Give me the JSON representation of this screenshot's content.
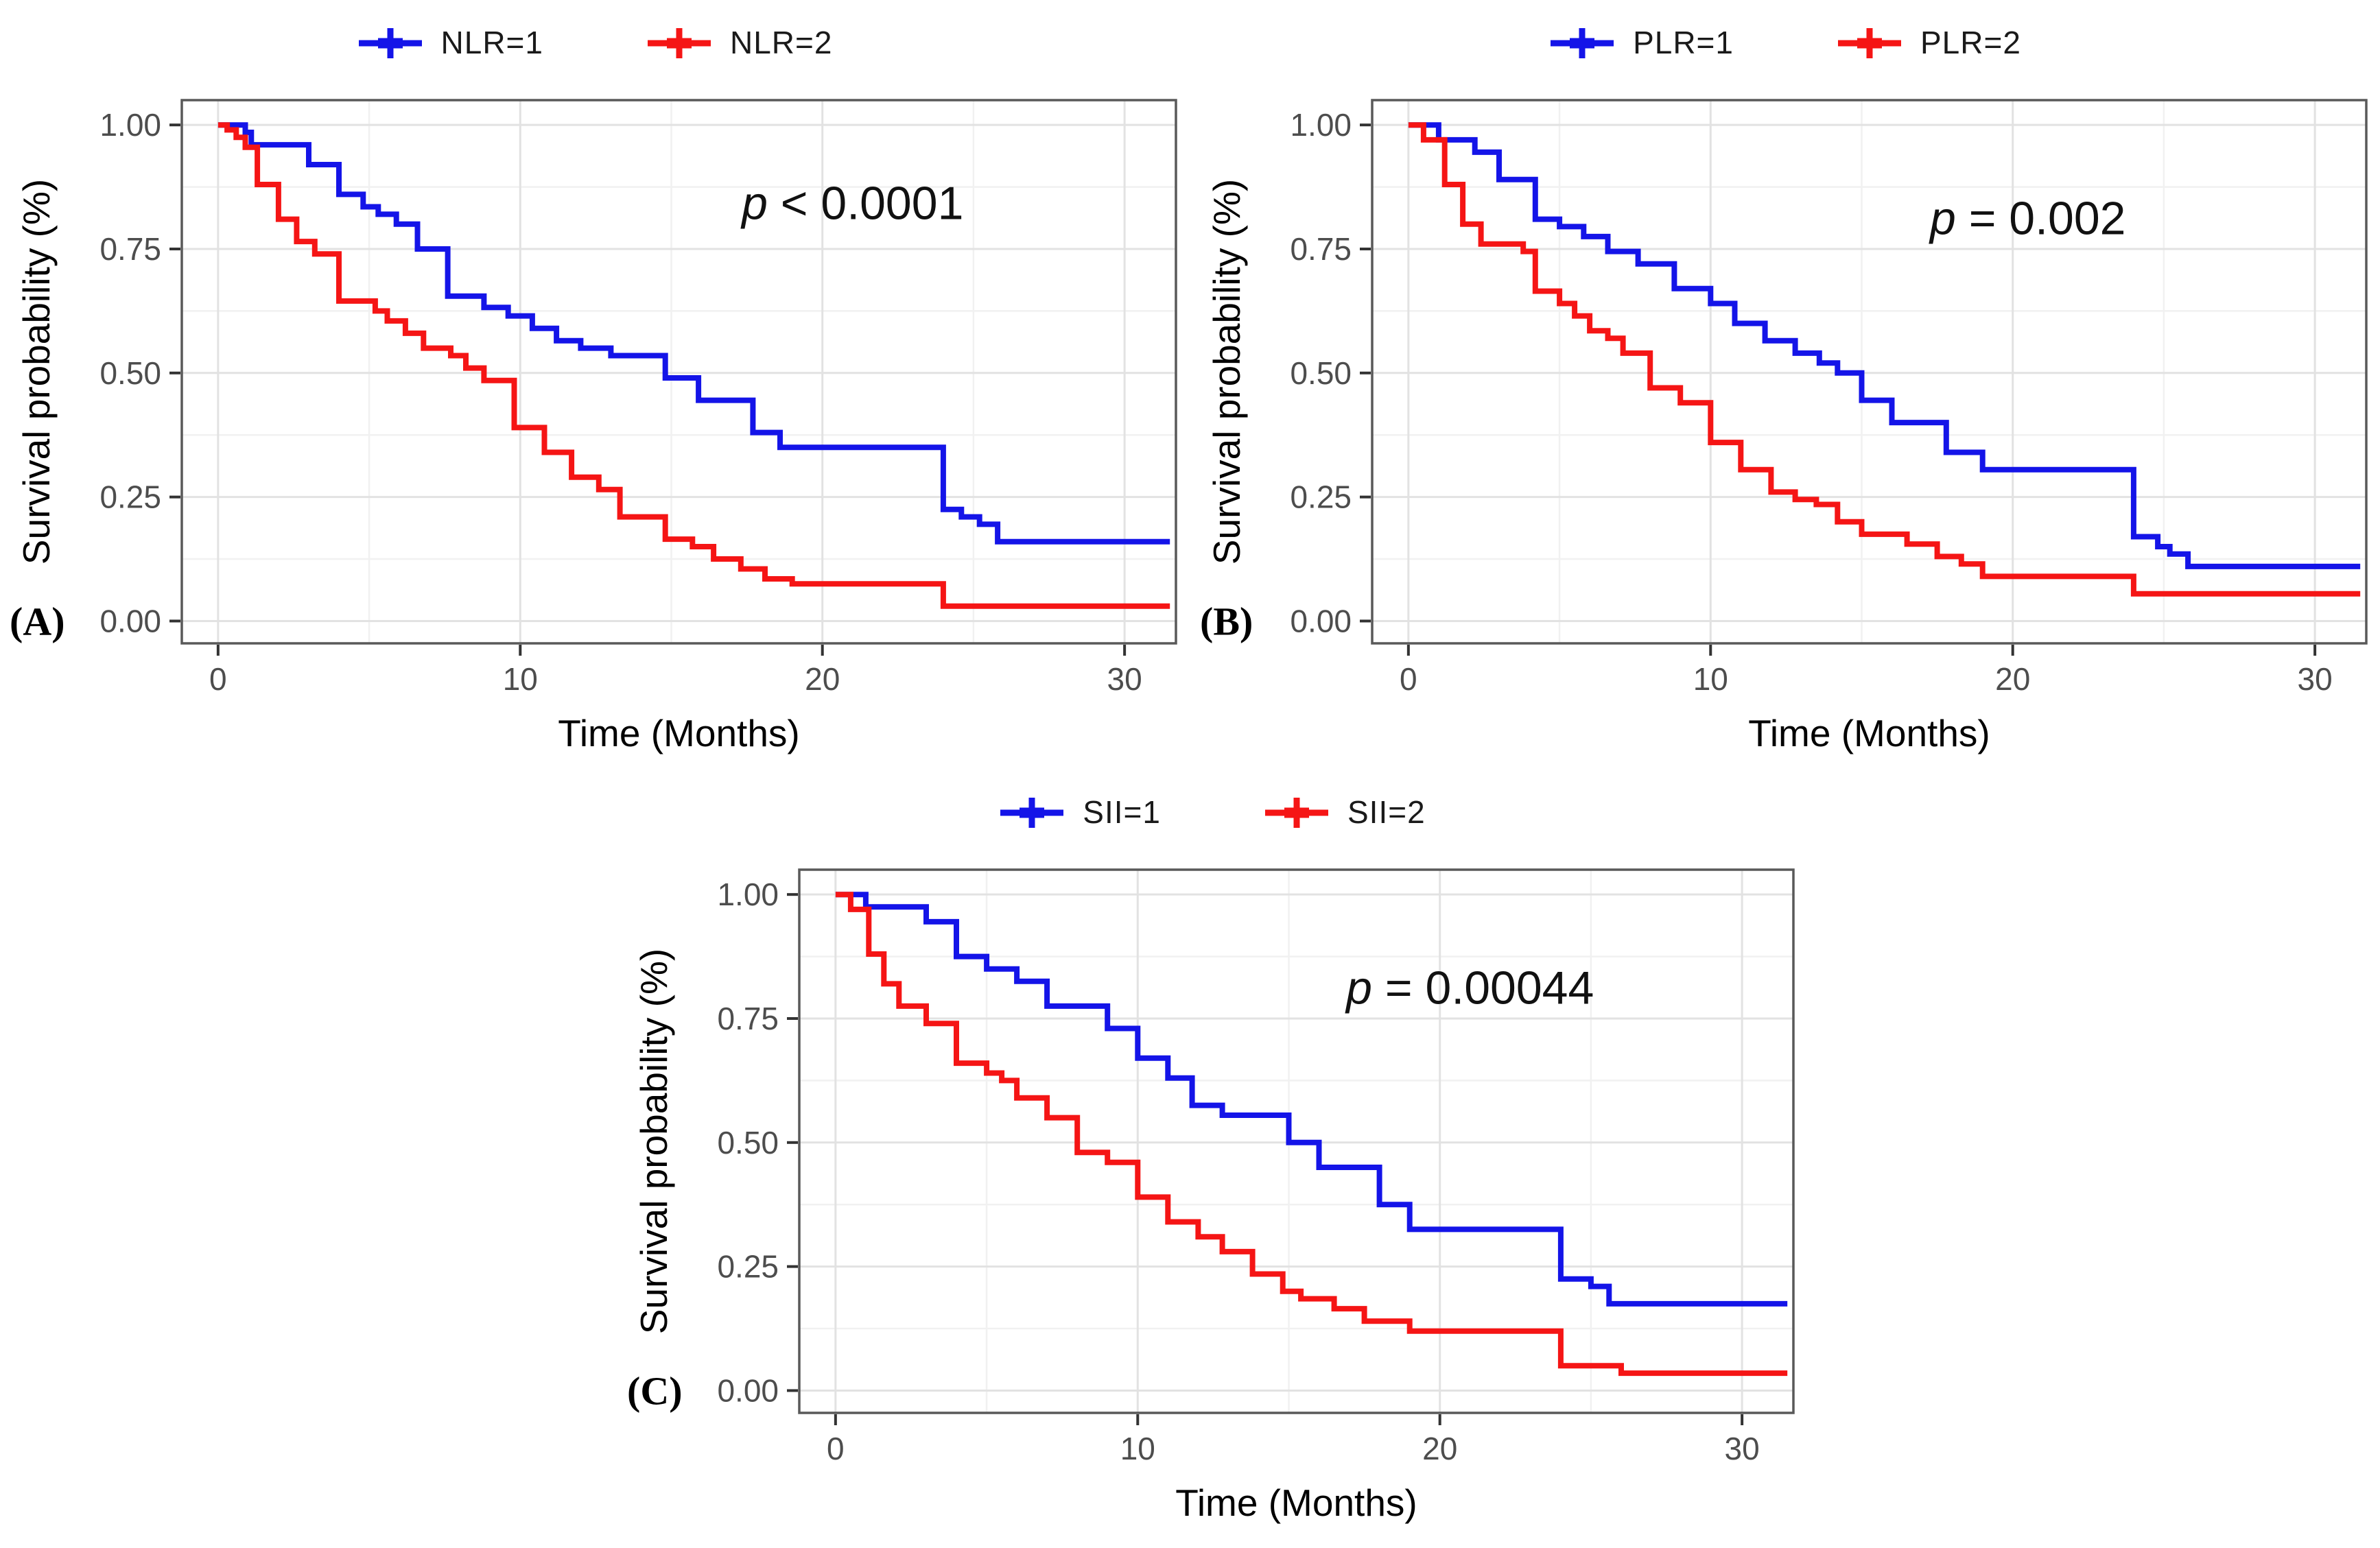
{
  "figure": {
    "background": "#ffffff",
    "colors": {
      "blue": "#1414e8",
      "red": "#f51515",
      "grid_major": "#e2e2e2",
      "grid_minor": "#f1f1f1",
      "panel_border": "#595959",
      "tick_mark": "#333333",
      "tick_text": "#4d4d4d",
      "axis_title": "#000000",
      "annotation_text": "#111111",
      "panel_letter": "#000000"
    }
  },
  "chart_data": [
    {
      "id": "A",
      "type": "line",
      "subtype": "kaplan_meier_step",
      "panel_label": "(A)",
      "xlabel": "Time (Months)",
      "ylabel": "Survival probability (%)",
      "p_label": {
        "italic": "p",
        "rest": " < 0.0001"
      },
      "p_anchor": {
        "x": 21,
        "y": 0.81
      },
      "xlim": [
        -1.2,
        31.7
      ],
      "ylim": [
        -0.045,
        1.05
      ],
      "xticks": [
        {
          "v": 0,
          "label": "0"
        },
        {
          "v": 10,
          "label": "10"
        },
        {
          "v": 20,
          "label": "20"
        },
        {
          "v": 30,
          "label": "30"
        }
      ],
      "yticks": [
        {
          "v": 0,
          "label": "0.00"
        },
        {
          "v": 0.25,
          "label": "0.25"
        },
        {
          "v": 0.5,
          "label": "0.50"
        },
        {
          "v": 0.75,
          "label": "0.75"
        },
        {
          "v": 1,
          "label": "1.00"
        }
      ],
      "x_minor": [
        5,
        15,
        25
      ],
      "y_minor": [
        0.125,
        0.375,
        0.625,
        0.875
      ],
      "grid": true,
      "legend_position": "top",
      "series": [
        {
          "name": "NLR=1",
          "color": "#1414e8",
          "points": [
            [
              0,
              1
            ],
            [
              0.9,
              0.985
            ],
            [
              1.1,
              0.96
            ],
            [
              3,
              0.92
            ],
            [
              4,
              0.86
            ],
            [
              4.8,
              0.835
            ],
            [
              5.3,
              0.82
            ],
            [
              5.9,
              0.8
            ],
            [
              6.6,
              0.75
            ],
            [
              7.6,
              0.655
            ],
            [
              8.8,
              0.632
            ],
            [
              9.6,
              0.615
            ],
            [
              10.4,
              0.59
            ],
            [
              11.2,
              0.565
            ],
            [
              12,
              0.55
            ],
            [
              13,
              0.535
            ],
            [
              14.8,
              0.49
            ],
            [
              15.9,
              0.445
            ],
            [
              17.7,
              0.38
            ],
            [
              18.6,
              0.35
            ],
            [
              24,
              0.225
            ],
            [
              24.6,
              0.21
            ],
            [
              25.2,
              0.195
            ],
            [
              25.8,
              0.16
            ],
            [
              31.5,
              0.16
            ]
          ]
        },
        {
          "name": "NLR=2",
          "color": "#f51515",
          "points": [
            [
              0,
              1
            ],
            [
              0.3,
              0.99
            ],
            [
              0.6,
              0.975
            ],
            [
              0.9,
              0.955
            ],
            [
              1.3,
              0.88
            ],
            [
              2,
              0.81
            ],
            [
              2.6,
              0.765
            ],
            [
              3.2,
              0.74
            ],
            [
              4,
              0.645
            ],
            [
              5.2,
              0.625
            ],
            [
              5.6,
              0.605
            ],
            [
              6.2,
              0.58
            ],
            [
              6.8,
              0.55
            ],
            [
              7.7,
              0.535
            ],
            [
              8.2,
              0.51
            ],
            [
              8.8,
              0.485
            ],
            [
              9.8,
              0.39
            ],
            [
              10.8,
              0.34
            ],
            [
              11.7,
              0.29
            ],
            [
              12.6,
              0.265
            ],
            [
              13.3,
              0.21
            ],
            [
              14.8,
              0.165
            ],
            [
              15.7,
              0.15
            ],
            [
              16.4,
              0.125
            ],
            [
              17.3,
              0.105
            ],
            [
              18.1,
              0.085
            ],
            [
              19,
              0.075
            ],
            [
              24,
              0.03
            ],
            [
              31.5,
              0.03
            ]
          ]
        }
      ]
    },
    {
      "id": "B",
      "type": "line",
      "subtype": "kaplan_meier_step",
      "panel_label": "(B)",
      "xlabel": "Time (Months)",
      "ylabel": "Survival probability (%)",
      "p_label": {
        "italic": "p",
        "rest": " = 0.002"
      },
      "p_anchor": {
        "x": 20.5,
        "y": 0.78
      },
      "xlim": [
        -1.2,
        31.7
      ],
      "ylim": [
        -0.045,
        1.05
      ],
      "xticks": [
        {
          "v": 0,
          "label": "0"
        },
        {
          "v": 10,
          "label": "10"
        },
        {
          "v": 20,
          "label": "20"
        },
        {
          "v": 30,
          "label": "30"
        }
      ],
      "yticks": [
        {
          "v": 0,
          "label": "0.00"
        },
        {
          "v": 0.25,
          "label": "0.25"
        },
        {
          "v": 0.5,
          "label": "0.50"
        },
        {
          "v": 0.75,
          "label": "0.75"
        },
        {
          "v": 1,
          "label": "1.00"
        }
      ],
      "x_minor": [
        5,
        15,
        25
      ],
      "y_minor": [
        0.125,
        0.375,
        0.625,
        0.875
      ],
      "grid": true,
      "legend_position": "top",
      "series": [
        {
          "name": "PLR=1",
          "color": "#1414e8",
          "points": [
            [
              0,
              1
            ],
            [
              1,
              0.97
            ],
            [
              2.2,
              0.945
            ],
            [
              3,
              0.89
            ],
            [
              4.2,
              0.81
            ],
            [
              5,
              0.795
            ],
            [
              5.8,
              0.775
            ],
            [
              6.6,
              0.745
            ],
            [
              7.6,
              0.72
            ],
            [
              8.8,
              0.67
            ],
            [
              10,
              0.64
            ],
            [
              10.8,
              0.6
            ],
            [
              11.8,
              0.565
            ],
            [
              12.8,
              0.54
            ],
            [
              13.6,
              0.52
            ],
            [
              14.2,
              0.5
            ],
            [
              15,
              0.445
            ],
            [
              16,
              0.4
            ],
            [
              17.8,
              0.34
            ],
            [
              19,
              0.305
            ],
            [
              24,
              0.17
            ],
            [
              24.8,
              0.15
            ],
            [
              25.2,
              0.135
            ],
            [
              25.8,
              0.11
            ],
            [
              31.5,
              0.11
            ]
          ]
        },
        {
          "name": "PLR=2",
          "color": "#f51515",
          "points": [
            [
              0,
              1
            ],
            [
              0.5,
              0.97
            ],
            [
              1.2,
              0.88
            ],
            [
              1.8,
              0.8
            ],
            [
              2.4,
              0.76
            ],
            [
              3.8,
              0.745
            ],
            [
              4.2,
              0.665
            ],
            [
              5,
              0.64
            ],
            [
              5.5,
              0.615
            ],
            [
              6,
              0.585
            ],
            [
              6.6,
              0.57
            ],
            [
              7.1,
              0.54
            ],
            [
              8,
              0.47
            ],
            [
              9,
              0.44
            ],
            [
              10,
              0.36
            ],
            [
              11,
              0.305
            ],
            [
              12,
              0.26
            ],
            [
              12.8,
              0.245
            ],
            [
              13.5,
              0.235
            ],
            [
              14.2,
              0.2
            ],
            [
              15,
              0.175
            ],
            [
              16.5,
              0.155
            ],
            [
              17.5,
              0.13
            ],
            [
              18.3,
              0.115
            ],
            [
              19,
              0.09
            ],
            [
              24,
              0.055
            ],
            [
              31.5,
              0.055
            ]
          ]
        }
      ]
    },
    {
      "id": "C",
      "type": "line",
      "subtype": "kaplan_meier_step",
      "panel_label": "(C)",
      "xlabel": "Time (Months)",
      "ylabel": "Survival probability (%)",
      "p_label": {
        "italic": "p",
        "rest": " = 0.00044"
      },
      "p_anchor": {
        "x": 21,
        "y": 0.78
      },
      "xlim": [
        -1.2,
        31.7
      ],
      "ylim": [
        -0.045,
        1.05
      ],
      "xticks": [
        {
          "v": 0,
          "label": "0"
        },
        {
          "v": 10,
          "label": "10"
        },
        {
          "v": 20,
          "label": "20"
        },
        {
          "v": 30,
          "label": "30"
        }
      ],
      "yticks": [
        {
          "v": 0,
          "label": "0.00"
        },
        {
          "v": 0.25,
          "label": "0.25"
        },
        {
          "v": 0.5,
          "label": "0.50"
        },
        {
          "v": 0.75,
          "label": "0.75"
        },
        {
          "v": 1,
          "label": "1.00"
        }
      ],
      "x_minor": [
        5,
        15,
        25
      ],
      "y_minor": [
        0.125,
        0.375,
        0.625,
        0.875
      ],
      "grid": true,
      "legend_position": "top",
      "series": [
        {
          "name": "SII=1",
          "color": "#1414e8",
          "points": [
            [
              0,
              1
            ],
            [
              1,
              0.975
            ],
            [
              3,
              0.945
            ],
            [
              4,
              0.875
            ],
            [
              5,
              0.85
            ],
            [
              6,
              0.825
            ],
            [
              7,
              0.775
            ],
            [
              9,
              0.73
            ],
            [
              10,
              0.67
            ],
            [
              11,
              0.63
            ],
            [
              11.8,
              0.575
            ],
            [
              12.8,
              0.555
            ],
            [
              15,
              0.5
            ],
            [
              16,
              0.45
            ],
            [
              18,
              0.375
            ],
            [
              19,
              0.325
            ],
            [
              24,
              0.225
            ],
            [
              25,
              0.21
            ],
            [
              25.6,
              0.175
            ],
            [
              31.5,
              0.175
            ]
          ]
        },
        {
          "name": "SII=2",
          "color": "#f51515",
          "points": [
            [
              0,
              1
            ],
            [
              0.5,
              0.97
            ],
            [
              1.1,
              0.88
            ],
            [
              1.6,
              0.82
            ],
            [
              2.1,
              0.775
            ],
            [
              3,
              0.74
            ],
            [
              4,
              0.66
            ],
            [
              5,
              0.64
            ],
            [
              5.5,
              0.625
            ],
            [
              6,
              0.59
            ],
            [
              7,
              0.55
            ],
            [
              8,
              0.48
            ],
            [
              9,
              0.46
            ],
            [
              10,
              0.39
            ],
            [
              11,
              0.34
            ],
            [
              12,
              0.31
            ],
            [
              12.8,
              0.28
            ],
            [
              13.8,
              0.235
            ],
            [
              14.8,
              0.2
            ],
            [
              15.4,
              0.185
            ],
            [
              16.5,
              0.165
            ],
            [
              17.5,
              0.14
            ],
            [
              19,
              0.12
            ],
            [
              24,
              0.05
            ],
            [
              26,
              0.035
            ],
            [
              31.5,
              0.035
            ]
          ]
        }
      ]
    }
  ]
}
